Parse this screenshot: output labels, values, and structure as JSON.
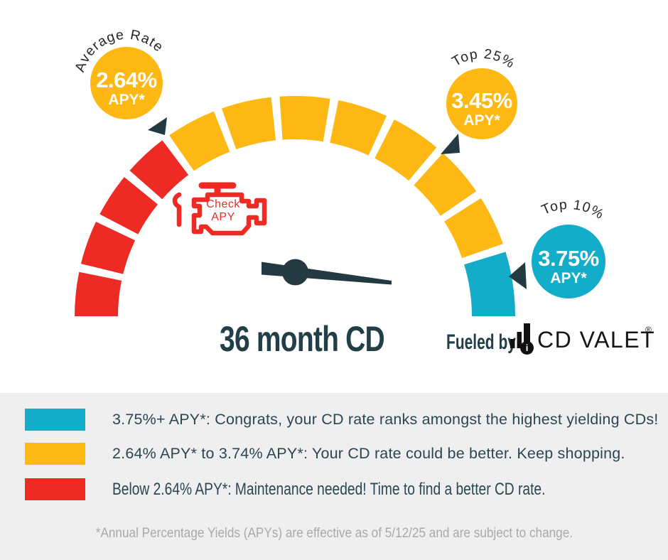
{
  "gauge": {
    "title": "36 month CD",
    "zones": [
      {
        "color": "#EE2A24",
        "segments": 4,
        "from": 180,
        "to": 127,
        "meaning": "Below 2.64% APY*"
      },
      {
        "color": "#FDB813",
        "segments": 7,
        "from": 124.8,
        "to": 19.2,
        "meaning": "2.64% APY* to 3.74% APY*"
      },
      {
        "color": "#14ADC9",
        "segments": 1,
        "from": 17,
        "to": 0,
        "meaning": "3.75%+ APY*"
      }
    ],
    "badges": [
      {
        "label": "Average Rate",
        "rate": "2.64%",
        "apy": "APY*",
        "fill": "#FDB813"
      },
      {
        "label": "Top 25%",
        "rate": "3.45%",
        "apy": "APY*",
        "fill": "#FDB813"
      },
      {
        "label": "Top 10%",
        "rate": "3.75%",
        "apy": "APY*",
        "fill": "#14ADC9"
      }
    ],
    "engine_label": {
      "line1": "Check",
      "line2": "APY"
    }
  },
  "branding": {
    "fueled_by": "Fueled by",
    "name": "CD VALET",
    "registered": "®",
    "logo_letter": "i"
  },
  "legend": {
    "rows": [
      {
        "color": "#14ADC9",
        "text": "3.75%+ APY*: Congrats, your CD rate ranks amongst the highest yielding CDs!"
      },
      {
        "color": "#FDB813",
        "text": "2.64% APY* to 3.74% APY*: Your CD rate could be better. Keep shopping."
      },
      {
        "color": "#EE2A24",
        "text": "Below 2.64% APY*: Maintenance needed! Time to find a better CD rate."
      }
    ]
  },
  "footnote": "*Annual Percentage Yields (APYs) are effective as of 5/12/25 and are subject to change.",
  "chart_data": {
    "type": "gauge",
    "title": "36 month CD",
    "unit": "APY",
    "zones": [
      {
        "color": "#EE2A24",
        "label": "Below 2.64% APY*: Maintenance needed! Time to find a better CD rate.",
        "segments": 4
      },
      {
        "color": "#FDB813",
        "label": "2.64% APY* to 3.74% APY*: Your CD rate could be better. Keep shopping.",
        "segments": 7
      },
      {
        "color": "#14ADC9",
        "label": "3.75%+ APY*: Congrats, your CD rate ranks amongst the highest yielding CDs!",
        "segments": 1
      }
    ],
    "markers": [
      {
        "label": "Average Rate",
        "value": "2.64% APY*"
      },
      {
        "label": "Top 25%",
        "value": "3.45% APY*"
      },
      {
        "label": "Top 10%",
        "value": "3.75% APY*"
      }
    ],
    "footnote": "*Annual Percentage Yields (APYs) are effective as of 5/12/25 and are subject to change."
  }
}
